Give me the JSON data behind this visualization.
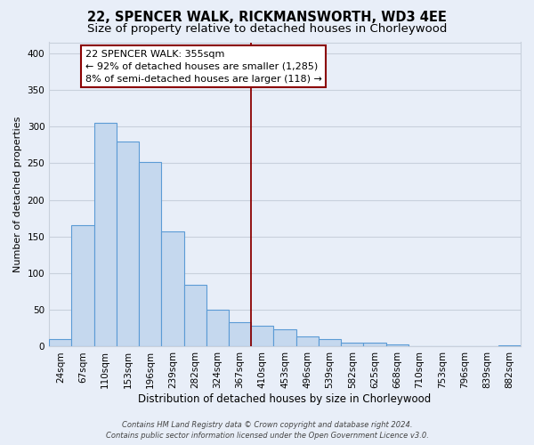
{
  "title": "22, SPENCER WALK, RICKMANSWORTH, WD3 4EE",
  "subtitle": "Size of property relative to detached houses in Chorleywood",
  "xlabel": "Distribution of detached houses by size in Chorleywood",
  "ylabel": "Number of detached properties",
  "bar_labels": [
    "24sqm",
    "67sqm",
    "110sqm",
    "153sqm",
    "196sqm",
    "239sqm",
    "282sqm",
    "324sqm",
    "367sqm",
    "410sqm",
    "453sqm",
    "496sqm",
    "539sqm",
    "582sqm",
    "625sqm",
    "668sqm",
    "710sqm",
    "753sqm",
    "796sqm",
    "839sqm",
    "882sqm"
  ],
  "bar_values": [
    10,
    165,
    305,
    280,
    252,
    157,
    84,
    50,
    33,
    29,
    24,
    14,
    10,
    5,
    5,
    3,
    1,
    1,
    0,
    0,
    2
  ],
  "bar_color": "#c5d8ee",
  "bar_edge_color": "#5b9bd5",
  "vline_x": 8.5,
  "vline_color": "#8b0000",
  "ylim": [
    0,
    415
  ],
  "yticks": [
    0,
    50,
    100,
    150,
    200,
    250,
    300,
    350,
    400
  ],
  "annotation_title": "22 SPENCER WALK: 355sqm",
  "annotation_line1": "← 92% of detached houses are smaller (1,285)",
  "annotation_line2": "8% of semi-detached houses are larger (118) →",
  "annotation_box_facecolor": "#ffffff",
  "annotation_box_edgecolor": "#8b0000",
  "footer_line1": "Contains HM Land Registry data © Crown copyright and database right 2024.",
  "footer_line2": "Contains public sector information licensed under the Open Government Licence v3.0.",
  "background_color": "#e8eef8",
  "grid_color": "#c8d0dc",
  "title_fontsize": 10.5,
  "subtitle_fontsize": 9.5,
  "xlabel_fontsize": 8.5,
  "ylabel_fontsize": 8,
  "tick_fontsize": 7.5,
  "annotation_fontsize": 8,
  "footer_fontsize": 6
}
